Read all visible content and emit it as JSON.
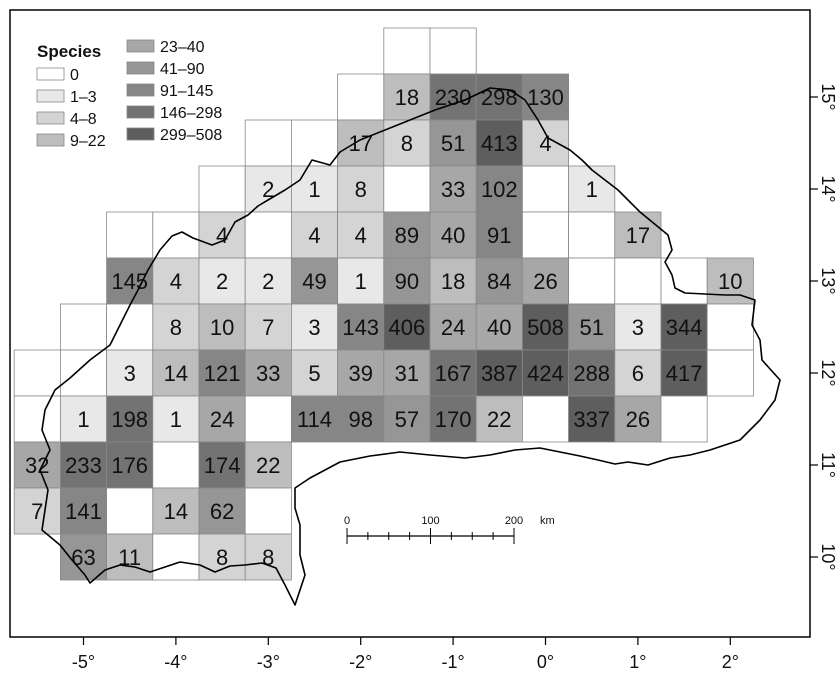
{
  "map": {
    "lon_ticks": [
      "-5°",
      "-4°",
      "-3°",
      "-2°",
      "-1°",
      "0°",
      "1°",
      "2°"
    ],
    "lat_ticks": [
      "10°",
      "11°",
      "12°",
      "13°",
      "14°",
      "15°"
    ],
    "cells": [
      {
        "lon": -1.5,
        "lat": 15.5,
        "value": ""
      },
      {
        "lon": -1.0,
        "lat": 15.5,
        "value": ""
      },
      {
        "lon": -2.0,
        "lat": 15.0,
        "value": ""
      },
      {
        "lon": -1.5,
        "lat": 15.0,
        "value": "18"
      },
      {
        "lon": -1.0,
        "lat": 15.0,
        "value": "230"
      },
      {
        "lon": -0.5,
        "lat": 15.0,
        "value": "298"
      },
      {
        "lon": 0.0,
        "lat": 15.0,
        "value": "130"
      },
      {
        "lon": -3.0,
        "lat": 14.5,
        "value": ""
      },
      {
        "lon": -2.5,
        "lat": 14.5,
        "value": ""
      },
      {
        "lon": -2.0,
        "lat": 14.5,
        "value": "17"
      },
      {
        "lon": -1.5,
        "lat": 14.5,
        "value": "8"
      },
      {
        "lon": -1.0,
        "lat": 14.5,
        "value": "51"
      },
      {
        "lon": -0.5,
        "lat": 14.5,
        "value": "413"
      },
      {
        "lon": 0.0,
        "lat": 14.5,
        "value": "4"
      },
      {
        "lon": -3.5,
        "lat": 14.0,
        "value": ""
      },
      {
        "lon": -3.0,
        "lat": 14.0,
        "value": "2"
      },
      {
        "lon": -2.5,
        "lat": 14.0,
        "value": "1"
      },
      {
        "lon": -2.0,
        "lat": 14.0,
        "value": "8"
      },
      {
        "lon": -1.5,
        "lat": 14.0,
        "value": ""
      },
      {
        "lon": -1.0,
        "lat": 14.0,
        "value": "33"
      },
      {
        "lon": -0.5,
        "lat": 14.0,
        "value": "102"
      },
      {
        "lon": 0.0,
        "lat": 14.0,
        "value": ""
      },
      {
        "lon": 0.5,
        "lat": 14.0,
        "value": "1"
      },
      {
        "lon": -4.5,
        "lat": 13.5,
        "value": ""
      },
      {
        "lon": -4.0,
        "lat": 13.5,
        "value": ""
      },
      {
        "lon": -3.5,
        "lat": 13.5,
        "value": "4"
      },
      {
        "lon": -3.0,
        "lat": 13.5,
        "value": ""
      },
      {
        "lon": -2.5,
        "lat": 13.5,
        "value": "4"
      },
      {
        "lon": -2.0,
        "lat": 13.5,
        "value": "4"
      },
      {
        "lon": -1.5,
        "lat": 13.5,
        "value": "89"
      },
      {
        "lon": -1.0,
        "lat": 13.5,
        "value": "40"
      },
      {
        "lon": -0.5,
        "lat": 13.5,
        "value": "91"
      },
      {
        "lon": 0.0,
        "lat": 13.5,
        "value": ""
      },
      {
        "lon": 0.5,
        "lat": 13.5,
        "value": ""
      },
      {
        "lon": 1.0,
        "lat": 13.5,
        "value": "17"
      },
      {
        "lon": -4.5,
        "lat": 13.0,
        "value": "145"
      },
      {
        "lon": -4.0,
        "lat": 13.0,
        "value": "4"
      },
      {
        "lon": -3.5,
        "lat": 13.0,
        "value": "2"
      },
      {
        "lon": -3.0,
        "lat": 13.0,
        "value": "2"
      },
      {
        "lon": -2.5,
        "lat": 13.0,
        "value": "49"
      },
      {
        "lon": -2.0,
        "lat": 13.0,
        "value": "1"
      },
      {
        "lon": -1.5,
        "lat": 13.0,
        "value": "90"
      },
      {
        "lon": -1.0,
        "lat": 13.0,
        "value": "18"
      },
      {
        "lon": -0.5,
        "lat": 13.0,
        "value": "84"
      },
      {
        "lon": 0.0,
        "lat": 13.0,
        "value": "26"
      },
      {
        "lon": 0.5,
        "lat": 13.0,
        "value": ""
      },
      {
        "lon": 1.0,
        "lat": 13.0,
        "value": ""
      },
      {
        "lon": 1.5,
        "lat": 13.0,
        "value": ""
      },
      {
        "lon": 2.0,
        "lat": 13.0,
        "value": "10"
      },
      {
        "lon": -5.0,
        "lat": 12.5,
        "value": ""
      },
      {
        "lon": -4.5,
        "lat": 12.5,
        "value": ""
      },
      {
        "lon": -4.0,
        "lat": 12.5,
        "value": "8"
      },
      {
        "lon": -3.5,
        "lat": 12.5,
        "value": "10"
      },
      {
        "lon": -3.0,
        "lat": 12.5,
        "value": "7"
      },
      {
        "lon": -2.5,
        "lat": 12.5,
        "value": "3"
      },
      {
        "lon": -2.0,
        "lat": 12.5,
        "value": "143"
      },
      {
        "lon": -1.5,
        "lat": 12.5,
        "value": "406"
      },
      {
        "lon": -1.0,
        "lat": 12.5,
        "value": "24"
      },
      {
        "lon": -0.5,
        "lat": 12.5,
        "value": "40"
      },
      {
        "lon": 0.0,
        "lat": 12.5,
        "value": "508"
      },
      {
        "lon": 0.5,
        "lat": 12.5,
        "value": "51"
      },
      {
        "lon": 1.0,
        "lat": 12.5,
        "value": "3"
      },
      {
        "lon": 1.5,
        "lat": 12.5,
        "value": "344"
      },
      {
        "lon": 2.0,
        "lat": 12.5,
        "value": ""
      },
      {
        "lon": -5.5,
        "lat": 12.0,
        "value": ""
      },
      {
        "lon": -5.0,
        "lat": 12.0,
        "value": ""
      },
      {
        "lon": -4.5,
        "lat": 12.0,
        "value": "3"
      },
      {
        "lon": -4.0,
        "lat": 12.0,
        "value": "14"
      },
      {
        "lon": -3.5,
        "lat": 12.0,
        "value": "121"
      },
      {
        "lon": -3.0,
        "lat": 12.0,
        "value": "33"
      },
      {
        "lon": -2.5,
        "lat": 12.0,
        "value": "5"
      },
      {
        "lon": -2.0,
        "lat": 12.0,
        "value": "39"
      },
      {
        "lon": -1.5,
        "lat": 12.0,
        "value": "31"
      },
      {
        "lon": -1.0,
        "lat": 12.0,
        "value": "167"
      },
      {
        "lon": -0.5,
        "lat": 12.0,
        "value": "387"
      },
      {
        "lon": 0.0,
        "lat": 12.0,
        "value": "424"
      },
      {
        "lon": 0.5,
        "lat": 12.0,
        "value": "288"
      },
      {
        "lon": 1.0,
        "lat": 12.0,
        "value": "6"
      },
      {
        "lon": 1.5,
        "lat": 12.0,
        "value": "417"
      },
      {
        "lon": 2.0,
        "lat": 12.0,
        "value": ""
      },
      {
        "lon": -5.5,
        "lat": 11.5,
        "value": ""
      },
      {
        "lon": -5.0,
        "lat": 11.5,
        "value": "1"
      },
      {
        "lon": -4.5,
        "lat": 11.5,
        "value": "198"
      },
      {
        "lon": -4.0,
        "lat": 11.5,
        "value": "1"
      },
      {
        "lon": -3.5,
        "lat": 11.5,
        "value": "24"
      },
      {
        "lon": -3.0,
        "lat": 11.5,
        "value": ""
      },
      {
        "lon": -2.5,
        "lat": 11.5,
        "value": "114"
      },
      {
        "lon": -2.0,
        "lat": 11.5,
        "value": "98"
      },
      {
        "lon": -1.5,
        "lat": 11.5,
        "value": "57"
      },
      {
        "lon": -1.0,
        "lat": 11.5,
        "value": "170"
      },
      {
        "lon": -0.5,
        "lat": 11.5,
        "value": "22"
      },
      {
        "lon": 0.0,
        "lat": 11.5,
        "value": ""
      },
      {
        "lon": 0.5,
        "lat": 11.5,
        "value": "337"
      },
      {
        "lon": 1.0,
        "lat": 11.5,
        "value": "26"
      },
      {
        "lon": 1.5,
        "lat": 11.5,
        "value": ""
      },
      {
        "lon": -5.5,
        "lat": 11.0,
        "value": "32"
      },
      {
        "lon": -5.0,
        "lat": 11.0,
        "value": "233"
      },
      {
        "lon": -4.5,
        "lat": 11.0,
        "value": "176"
      },
      {
        "lon": -4.0,
        "lat": 11.0,
        "value": ""
      },
      {
        "lon": -3.5,
        "lat": 11.0,
        "value": "174"
      },
      {
        "lon": -3.0,
        "lat": 11.0,
        "value": "22"
      },
      {
        "lon": -5.5,
        "lat": 10.5,
        "value": "7"
      },
      {
        "lon": -5.0,
        "lat": 10.5,
        "value": "141"
      },
      {
        "lon": -4.5,
        "lat": 10.5,
        "value": ""
      },
      {
        "lon": -4.0,
        "lat": 10.5,
        "value": "14"
      },
      {
        "lon": -3.5,
        "lat": 10.5,
        "value": "62"
      },
      {
        "lon": -3.0,
        "lat": 10.5,
        "value": ""
      },
      {
        "lon": -5.0,
        "lat": 10.0,
        "value": "63"
      },
      {
        "lon": -4.5,
        "lat": 10.0,
        "value": "11"
      },
      {
        "lon": -4.0,
        "lat": 10.0,
        "value": ""
      },
      {
        "lon": -3.5,
        "lat": 10.0,
        "value": "8"
      },
      {
        "lon": -3.0,
        "lat": 10.0,
        "value": "8"
      }
    ]
  },
  "legend": {
    "title": "Species",
    "classes": [
      {
        "label": "0",
        "color": "#ffffff"
      },
      {
        "label": "1–3",
        "color": "#e8e8e8"
      },
      {
        "label": "4–8",
        "color": "#d4d4d4"
      },
      {
        "label": "9–22",
        "color": "#bdbdbd"
      },
      {
        "label": "23–40",
        "color": "#a7a7a7"
      },
      {
        "label": "41–90",
        "color": "#969696"
      },
      {
        "label": "91–145",
        "color": "#868686"
      },
      {
        "label": "146–298",
        "color": "#737373"
      },
      {
        "label": "299–508",
        "color": "#5e5e5e"
      }
    ]
  },
  "scale_bar": {
    "labels": [
      "0",
      "100",
      "200"
    ],
    "unit": "km"
  }
}
